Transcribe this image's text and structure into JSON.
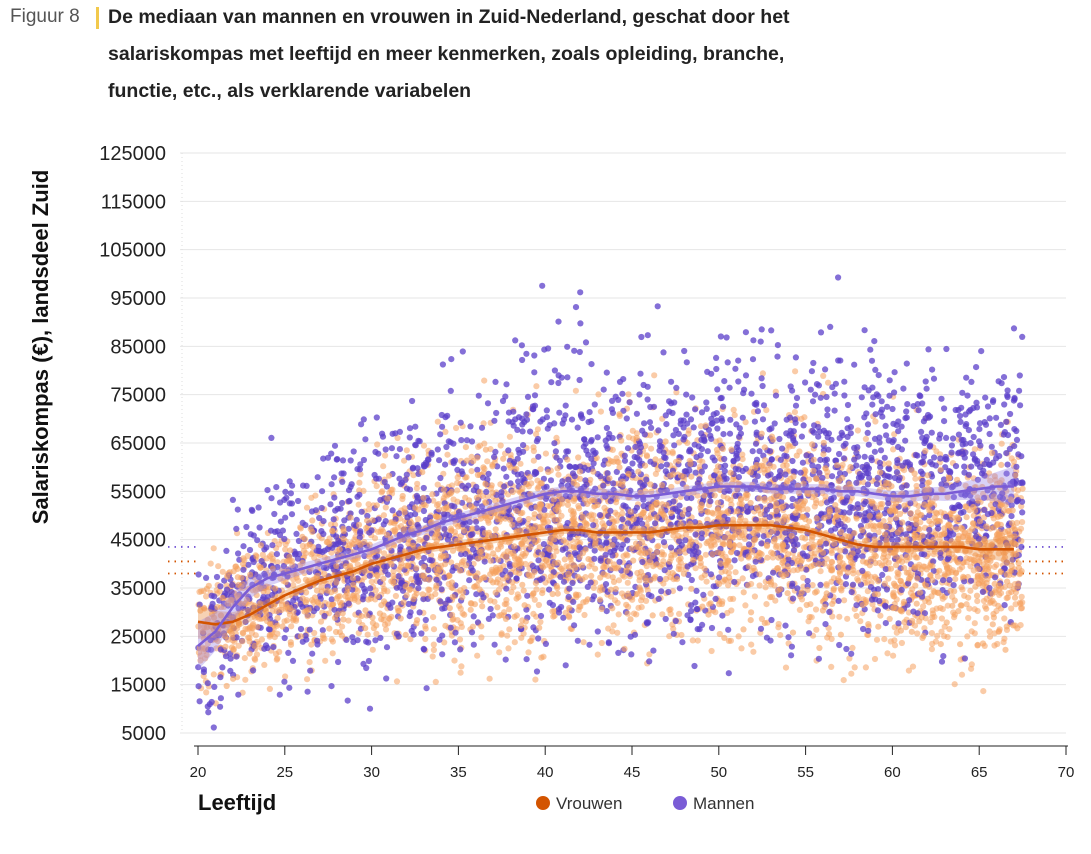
{
  "figure": {
    "label": "Figuur 8",
    "title": "De mediaan van mannen en vrouwen in Zuid-Nederland, geschat door het salariskompas met leeftijd en meer kenmerken, zoals opleiding, branche, functie, etc., als verklarende variabelen"
  },
  "colors": {
    "vrouwen_line": "#d35400",
    "vrouwen_points": "#f5a15f",
    "mannen_line": "#7a5cd6",
    "mannen_points": "#5b3fc9",
    "grid": "#e6e6e6"
  },
  "chart_data": {
    "type": "scatter",
    "xlabel": "Leeftijd",
    "ylabel": "Salariskompas (€), landsdeel Zuid",
    "xlim": [
      20,
      70
    ],
    "ylim": [
      5000,
      125000
    ],
    "x_ticks": [
      "20",
      "25",
      "30",
      "35",
      "40",
      "45",
      "50",
      "55",
      "60",
      "65",
      "70"
    ],
    "y_ticks": [
      "5000",
      "15000",
      "25000",
      "35000",
      "45000",
      "55000",
      "65000",
      "75000",
      "85000",
      "95000",
      "105000",
      "115000",
      "125000"
    ],
    "grid": true,
    "legend_position": "bottom",
    "series": [
      {
        "name": "Vrouwen",
        "median_x": [
          20,
          21,
          22,
          23,
          24,
          25,
          26,
          27,
          28,
          29,
          30,
          31,
          32,
          33,
          34,
          35,
          36,
          37,
          38,
          39,
          40,
          41,
          42,
          43,
          44,
          45,
          46,
          47,
          48,
          49,
          50,
          51,
          52,
          53,
          54,
          55,
          56,
          57,
          58,
          59,
          60,
          61,
          62,
          63,
          64,
          65,
          66,
          67
        ],
        "median_y": [
          28000,
          27500,
          28000,
          29500,
          31500,
          33500,
          35000,
          36500,
          37500,
          38500,
          40000,
          41000,
          42000,
          43000,
          43500,
          44000,
          44500,
          45000,
          45500,
          46000,
          46500,
          47000,
          47000,
          46500,
          46500,
          46500,
          46500,
          47000,
          47500,
          47500,
          48000,
          48000,
          48000,
          48000,
          47500,
          47000,
          46000,
          45000,
          44000,
          43500,
          43500,
          43500,
          43500,
          43500,
          43500,
          43000,
          43000,
          43000
        ],
        "ci_halfwidth": [
          3500,
          2800,
          2000,
          1500,
          1200,
          1000,
          900,
          800,
          800,
          800,
          800,
          800,
          800,
          800,
          800,
          800,
          800,
          800,
          800,
          800,
          800,
          800,
          800,
          800,
          800,
          800,
          800,
          800,
          800,
          800,
          800,
          800,
          800,
          800,
          800,
          800,
          800,
          800,
          800,
          900,
          1000,
          1000,
          1000,
          1100,
          1300,
          1600,
          2200,
          3200
        ],
        "reference_lines": [
          40500,
          38000
        ]
      },
      {
        "name": "Mannen",
        "median_x": [
          20,
          21,
          22,
          23,
          24,
          25,
          26,
          27,
          28,
          29,
          30,
          31,
          32,
          33,
          34,
          35,
          36,
          37,
          38,
          39,
          40,
          41,
          42,
          43,
          44,
          45,
          46,
          47,
          48,
          49,
          50,
          51,
          52,
          53,
          54,
          55,
          56,
          57,
          58,
          59,
          60,
          61,
          62,
          63,
          64,
          65,
          66,
          67
        ],
        "median_y": [
          23000,
          26000,
          31000,
          35000,
          37000,
          38000,
          39000,
          40000,
          41000,
          42000,
          43000,
          44500,
          46000,
          47000,
          48500,
          49500,
          50500,
          51500,
          52500,
          53500,
          54500,
          55000,
          55000,
          54500,
          54500,
          54000,
          54000,
          54500,
          55000,
          55500,
          56000,
          56000,
          56000,
          55500,
          55500,
          55500,
          55500,
          55000,
          55000,
          54500,
          54000,
          54000,
          54500,
          54500,
          55000,
          55500,
          56000,
          56000
        ],
        "ci_halfwidth": [
          5000,
          4000,
          3000,
          2200,
          1700,
          1400,
          1200,
          1100,
          1000,
          1000,
          1000,
          1000,
          1000,
          1000,
          1000,
          1000,
          1000,
          1000,
          1000,
          1000,
          1000,
          1000,
          1000,
          1000,
          1000,
          1000,
          1000,
          1000,
          1000,
          1000,
          1000,
          1000,
          1000,
          1000,
          1000,
          1000,
          1000,
          1000,
          1000,
          1000,
          1100,
          1200,
          1300,
          1500,
          1800,
          2300,
          3000,
          4200
        ],
        "reference_lines": [
          43500
        ]
      }
    ]
  }
}
